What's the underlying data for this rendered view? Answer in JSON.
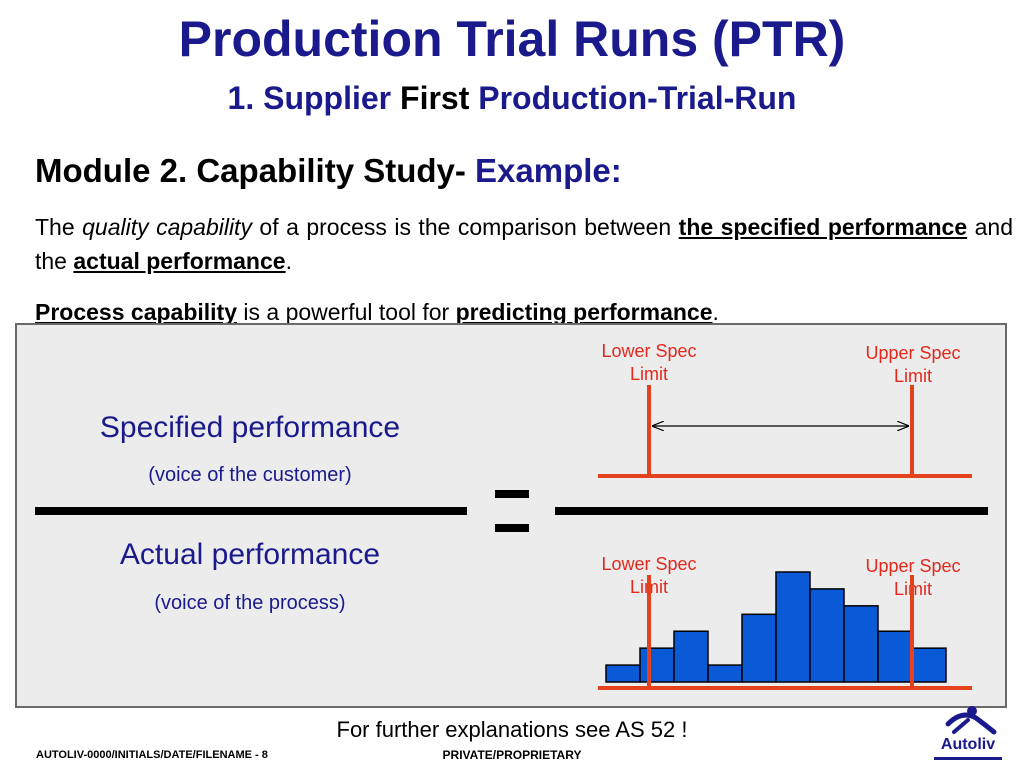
{
  "header": {
    "title": "Production Trial Runs (PTR)",
    "subtitle_part1": "1. Supplier ",
    "subtitle_part2": "First",
    "subtitle_part3": " Production-Trial-Run"
  },
  "module": {
    "heading_part1": "Module 2. Capability Study- ",
    "heading_part2": "Example:"
  },
  "paragraph1": {
    "t1": "The ",
    "t2": "quality capability",
    "t3": " of a process is the comparison between ",
    "t4": "the specified performance",
    "t5": " and the ",
    "t6": "actual performance",
    "t7": "."
  },
  "paragraph2": {
    "t1": "Process capability",
    "t2": " is a powerful tool for ",
    "t3": "predicting performance",
    "t4": "."
  },
  "formula": {
    "specified_main": "Specified performance",
    "specified_sub": "(voice of the customer)",
    "actual_main": "Actual performance",
    "actual_sub": "(voice of the process)"
  },
  "diagram": {
    "lower_spec_label": "Lower Spec Limit",
    "upper_spec_label": "Upper Spec Limit",
    "histogram_values": [
      1,
      2,
      3,
      1,
      4,
      6.5,
      5.5,
      4.5,
      3,
      2
    ],
    "colors": {
      "spec": "#e4421c",
      "bar": "#0a5ad8",
      "arrow": "#000000"
    }
  },
  "footer": {
    "note": "For further explanations see AS 52 !",
    "left": "AUTOLIV-0000/INITIALS/DATE/FILENAME - 8",
    "center": "PRIVATE/PROPRIETARY",
    "logo_text": "Autoliv"
  }
}
